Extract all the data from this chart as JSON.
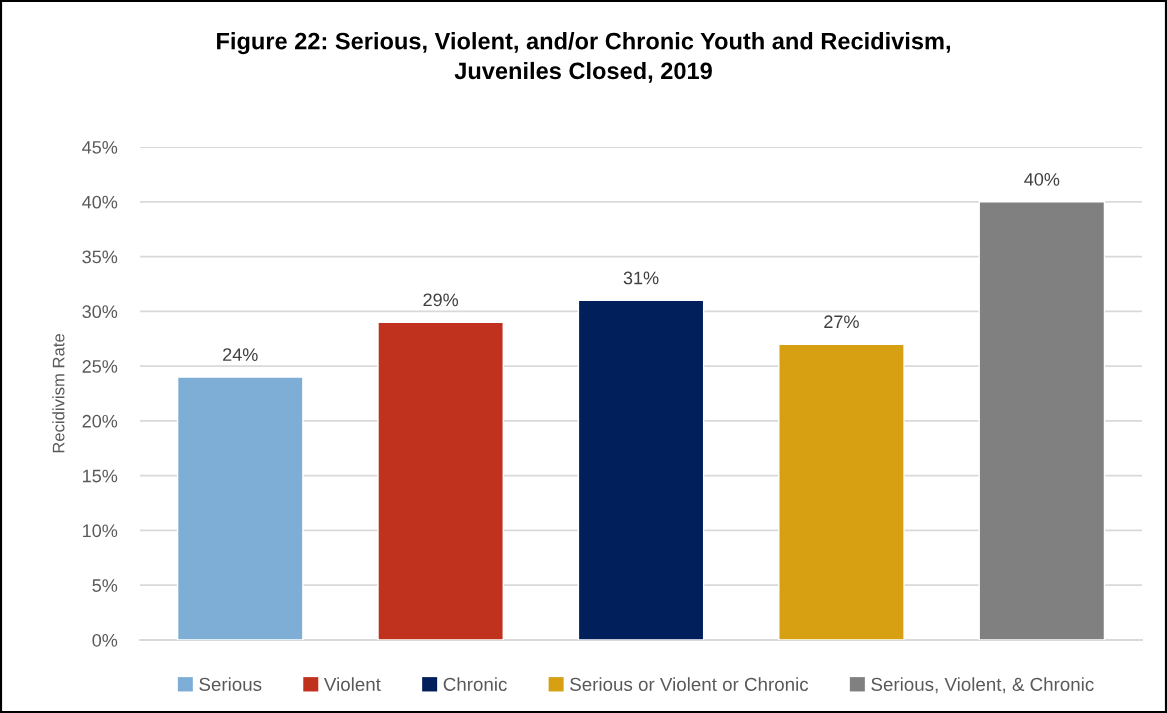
{
  "chart_data": {
    "type": "bar",
    "title": "Figure 22: Serious, Violent, and/or Chronic Youth and Recidivism,\nJuveniles Closed, 2019",
    "ylabel": "Recidivism Rate",
    "categories": [
      null
    ],
    "series": [
      {
        "name": "Serious",
        "color": "#7eaed5",
        "values": [
          24
        ],
        "value_labels": [
          "24%"
        ]
      },
      {
        "name": "Violent",
        "color": "#c0311e",
        "values": [
          29
        ],
        "value_labels": [
          "29%"
        ]
      },
      {
        "name": "Chronic",
        "color": "#001f5b",
        "values": [
          31
        ],
        "value_labels": [
          "31%"
        ]
      },
      {
        "name": "Serious or Violent or Chronic",
        "color": "#d6a012",
        "values": [
          27
        ],
        "value_labels": [
          "27%"
        ]
      },
      {
        "name": "Serious, Violent, & Chronic",
        "color": "#808080",
        "values": [
          40
        ],
        "value_labels": [
          "40%"
        ]
      }
    ],
    "ylim": [
      0,
      45
    ],
    "yticks": [
      {
        "value": 0,
        "label": "0%"
      },
      {
        "value": 5,
        "label": "5%"
      },
      {
        "value": 10,
        "label": "10%"
      },
      {
        "value": 15,
        "label": "15%"
      },
      {
        "value": 20,
        "label": "20%"
      },
      {
        "value": 25,
        "label": "25%"
      },
      {
        "value": 30,
        "label": "30%"
      },
      {
        "value": 35,
        "label": "35%"
      },
      {
        "value": 40,
        "label": "40%"
      },
      {
        "value": 45,
        "label": "45%"
      }
    ],
    "grid": "y",
    "legend": "bottom"
  }
}
